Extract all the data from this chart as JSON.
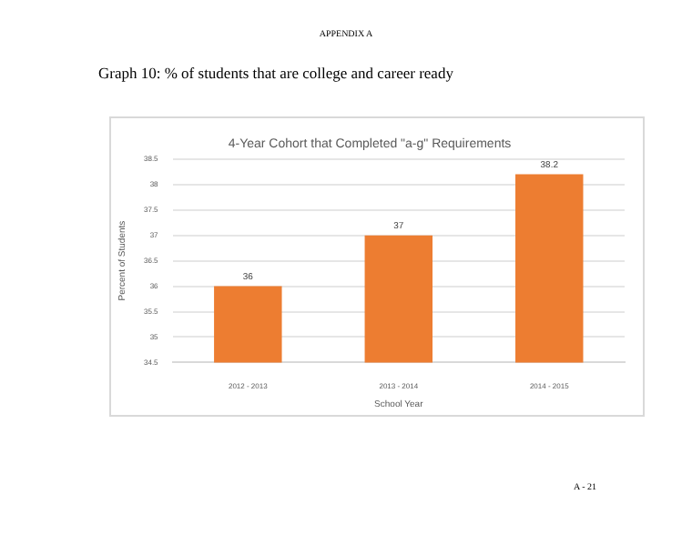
{
  "chart_data": {
    "type": "bar",
    "title": "4-Year Cohort that Completed \"a-g\" Requirements",
    "xlabel": "School Year",
    "ylabel": "Percent of Students",
    "categories": [
      "2012 - 2013",
      "2013 - 2014",
      "2014 - 2015"
    ],
    "values": [
      36,
      37,
      38.2
    ],
    "color": "#ed7d31",
    "ylim": [
      34.5,
      38.5
    ],
    "yticks": [
      34.5,
      35,
      35.5,
      36,
      36.5,
      37,
      37.5,
      38,
      38.5
    ],
    "grid": "y",
    "data_labels": true,
    "legend": false,
    "annotations": [
      "APPENDIX A",
      "Graph 10: % of students that are college and career ready",
      "A - 21"
    ]
  }
}
